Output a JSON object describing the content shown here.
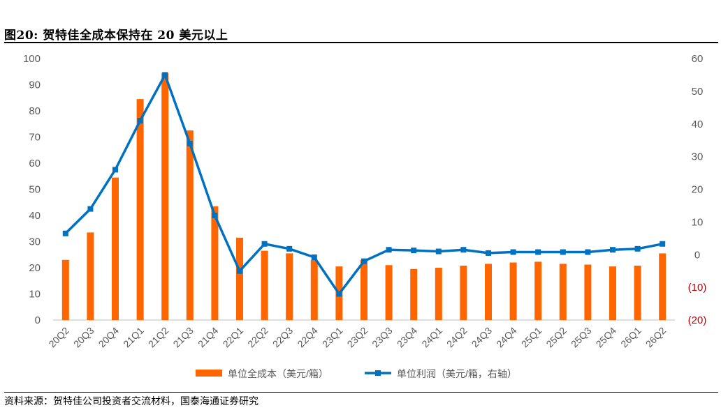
{
  "figure": {
    "title": "图20:  贺特佳全成本保持在 20 美元以上",
    "source": "资料来源：贺特佳公司投资者交流材料，国泰海通证券研究"
  },
  "colors": {
    "bar": "#FF6600",
    "line": "#0070C0",
    "negative_tick": "#C00000",
    "axis_text": "#595959",
    "grid": "#D9D9D9"
  },
  "chart_data": {
    "type": "bar",
    "categories": [
      "20Q2",
      "20Q3",
      "20Q4",
      "21Q1",
      "21Q2",
      "21Q3",
      "21Q4",
      "22Q1",
      "22Q2",
      "22Q3",
      "22Q4",
      "23Q1",
      "23Q2",
      "23Q3",
      "23Q4",
      "24Q1",
      "24Q2",
      "24Q3",
      "24Q4",
      "25Q1",
      "25Q2",
      "25Q3",
      "25Q4",
      "26Q1",
      "26Q2"
    ],
    "series": [
      {
        "name": "单位全成本（美元/箱）",
        "type": "bar",
        "axis": "left",
        "values": [
          23,
          33.5,
          54.5,
          84.5,
          94.5,
          72.5,
          43.5,
          31.5,
          26.5,
          25.5,
          23,
          20.5,
          23,
          21,
          19.5,
          20,
          20.8,
          21.5,
          22,
          22.3,
          21.5,
          21.2,
          20.5,
          20.8,
          25.5
        ]
      },
      {
        "name": "单位利润（美元/箱，右轴）",
        "type": "line",
        "axis": "right",
        "values": [
          6.5,
          14,
          26,
          41,
          55,
          34,
          12,
          -5,
          3.3,
          1.8,
          -0.8,
          -12,
          -2,
          1.5,
          1.3,
          1,
          1.5,
          0.5,
          0.8,
          0.8,
          0.8,
          0.8,
          1.5,
          1.8,
          3.3
        ]
      }
    ],
    "y_left": {
      "min": 0,
      "max": 100,
      "ticks": [
        "0",
        "10",
        "20",
        "30",
        "40",
        "50",
        "60",
        "70",
        "80",
        "90",
        "100"
      ]
    },
    "y_right": {
      "min": -20,
      "max": 60,
      "ticks": [
        "(20)",
        "(10)",
        "0",
        "10",
        "20",
        "30",
        "40",
        "50",
        "60"
      ]
    },
    "grid": false,
    "legend_position": "bottom"
  }
}
